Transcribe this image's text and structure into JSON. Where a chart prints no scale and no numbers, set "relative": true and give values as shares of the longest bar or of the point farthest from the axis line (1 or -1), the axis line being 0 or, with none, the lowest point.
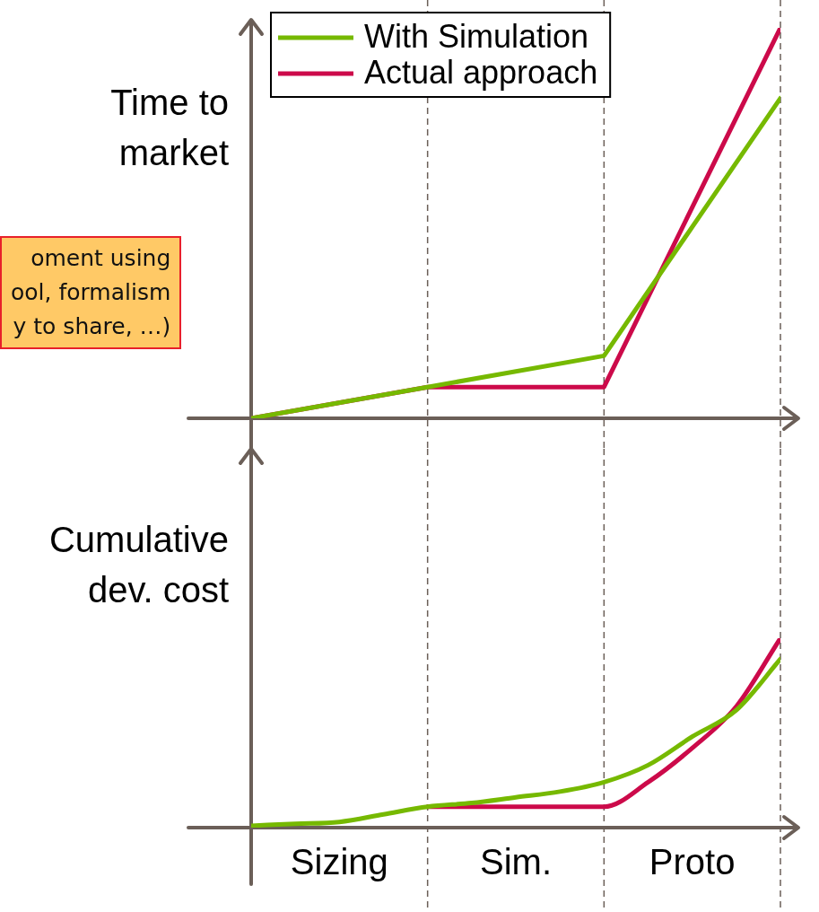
{
  "chart_data": [
    {
      "type": "line",
      "relative": true,
      "ylabel": "Time to market",
      "categories": [
        null,
        null,
        null,
        null
      ],
      "tick_labels": false,
      "grid": "x",
      "legend": "top left",
      "marker": "none",
      "line_style": "solid",
      "annotations": [
        "oment using\nool, formalism\ny to share, …)"
      ],
      "series": [
        {
          "name": "With Simulation",
          "color": "#76b900",
          "values": [
            0,
            0.08,
            0.16,
            0.82
          ]
        },
        {
          "name": "Actual approach",
          "color": "#cc0a4a",
          "values": [
            0,
            0.08,
            0.08,
            1
          ]
        }
      ]
    },
    {
      "type": "line",
      "relative": true,
      "ylabel": "Cumulative dev. cost",
      "categories": [
        null,
        null,
        null,
        null,
        null,
        null,
        null,
        null,
        null,
        null,
        null,
        null,
        null
      ],
      "tick_labels": false,
      "grid": "x",
      "marker": "none",
      "line_style": "solid",
      "annotations": [
        "Sizing",
        "Sim.",
        "Proto"
      ],
      "series": [
        {
          "color": "#76b900",
          "values": [
            0.01,
            0.02,
            0.03,
            0.07,
            0.11,
            0.13,
            0.16,
            0.19,
            0.24,
            0.33,
            0.48,
            0.62,
            0.89
          ]
        },
        {
          "color": "#cc0a4a",
          "values": [
            null,
            null,
            null,
            null,
            0.11,
            0.11,
            0.11,
            0.11,
            0.11,
            0.24,
            0.42,
            0.64,
            1
          ]
        }
      ]
    }
  ]
}
